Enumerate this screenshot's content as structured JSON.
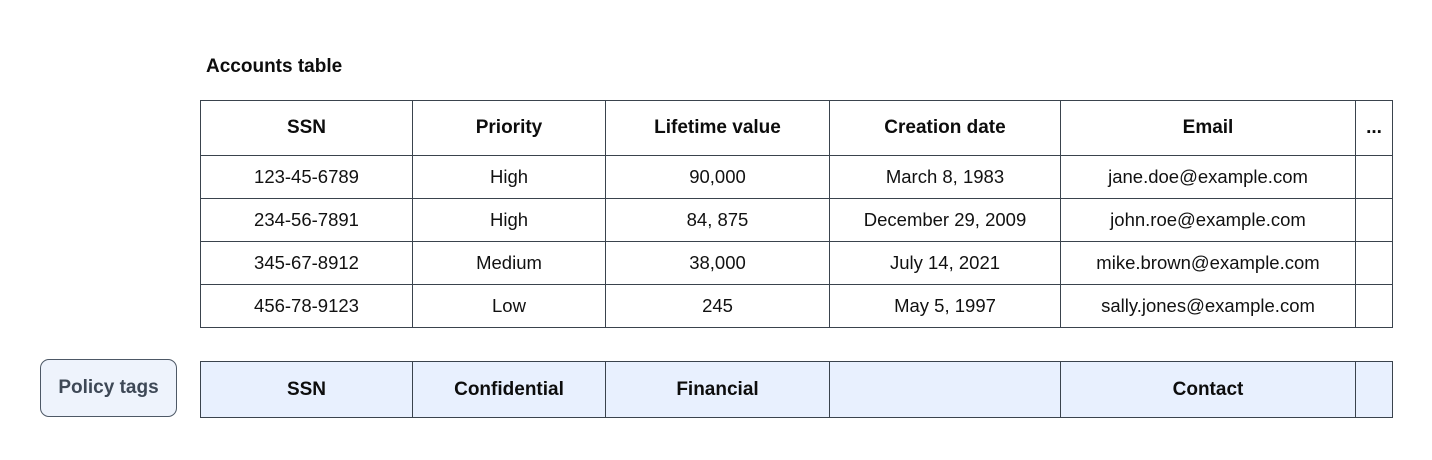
{
  "title": "Accounts table",
  "table": {
    "headers": [
      "SSN",
      "Priority",
      "Lifetime value",
      "Creation date",
      "Email",
      "..."
    ],
    "rows": [
      [
        "123-45-6789",
        "High",
        "90,000",
        "March 8, 1983",
        "jane.doe@example.com",
        ""
      ],
      [
        "234-56-7891",
        "High",
        "84, 875",
        "December 29, 2009",
        "john.roe@example.com",
        ""
      ],
      [
        "345-67-8912",
        "Medium",
        "38,000",
        "July 14, 2021",
        "mike.brown@example.com",
        ""
      ],
      [
        "456-78-9123",
        "Low",
        "245",
        "May 5, 1997",
        "sally.jones@example.com",
        ""
      ]
    ]
  },
  "policy": {
    "button_label": "Policy tags",
    "tags": [
      "SSN",
      "Confidential",
      "Financial",
      "",
      "Contact",
      ""
    ]
  },
  "colors": {
    "table_border": "#3a434d",
    "policy_row_background": "#e8f0fe",
    "policy_button_background": "#eef3fc",
    "policy_button_border": "#4d5866",
    "policy_button_text": "#3e4856"
  }
}
